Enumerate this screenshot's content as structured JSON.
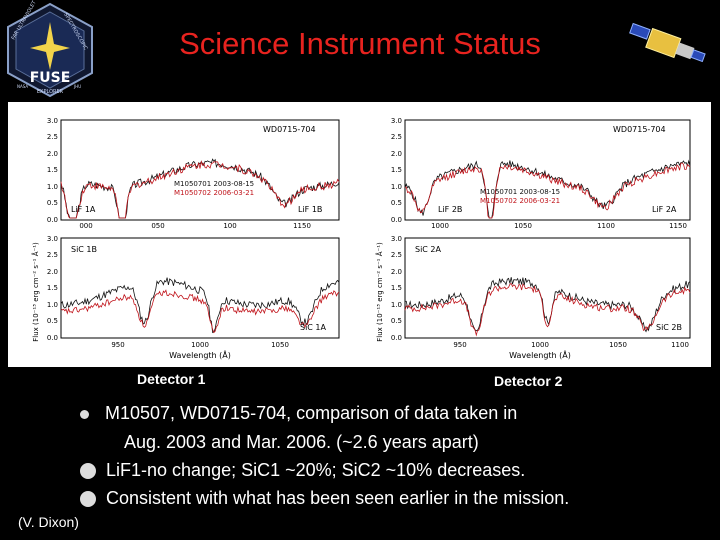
{
  "slide": {
    "title": "Science Instrument Status",
    "credit": "(V. Dixon)"
  },
  "logo": {
    "name": "FUSE",
    "ring_left": "FAR ULTRAVIOLET",
    "ring_right": "SPECTROSCOPIC",
    "bottom": "EXPLORER",
    "left_small": "NASA",
    "right_small": "JHU"
  },
  "detectors": [
    {
      "label": "Detector 1",
      "top_panel": {
        "target": "WD0715-704",
        "legend": [
          "M1050701 2003-08-15",
          "M1050702 2006-03-21"
        ],
        "left_tag": "LiF 1A",
        "right_tag": "LiF 1B",
        "xticks": [
          "000",
          "050",
          "100",
          "1150"
        ],
        "yticks": [
          "3.0",
          "2.5",
          "2.0",
          "1.5",
          "1.0",
          "0.5",
          "0.0"
        ]
      },
      "bottom_panel": {
        "left_tag": "SiC 1B",
        "right_tag": "SiC 1A",
        "xticks": [
          "950",
          "1000",
          "1050"
        ],
        "yticks": [
          "3.0",
          "2.5",
          "2.0",
          "1.5",
          "1.0",
          "0.5",
          "0.0"
        ],
        "xlabel": "Wavelength (Å)"
      },
      "ylabel": "Flux (10⁻¹³ erg cm⁻² s⁻¹ Å⁻¹)"
    },
    {
      "label": "Detector 2",
      "top_panel": {
        "target": "WD0715-704",
        "legend": [
          "M1050701 2003-08-15",
          "M1050702 2006-03-21"
        ],
        "left_tag": "LiF 2B",
        "right_tag": "LiF 2A",
        "xticks": [
          "1000",
          "1050",
          "1100",
          "1150"
        ],
        "yticks": [
          "3.0",
          "2.5",
          "2.0",
          "1.5",
          "1.0",
          "0.5",
          "0.0"
        ]
      },
      "bottom_panel": {
        "left_tag": "SiC 2A",
        "right_tag": "SiC 2B",
        "xticks": [
          "950",
          "1000",
          "1050",
          "1100"
        ],
        "yticks": [
          "3.0",
          "2.5",
          "2.0",
          "1.5",
          "1.0",
          "0.5",
          "0.0"
        ],
        "xlabel": "Wavelength (Å)"
      },
      "ylabel": "Flux (10⁻¹³ erg cm⁻² s⁻¹ Å⁻¹)"
    }
  ],
  "bullets": [
    {
      "line1": "M10507, WD0715-704, comparison of data taken in",
      "line2": "Aug. 2003 and Mar. 2006.  (~2.6 years apart)"
    },
    {
      "line1": "LiF1-no change; SiC1 ~20%; SiC2 ~10% decreases."
    },
    {
      "line1": "Consistent with what has been seen earlier in the mission."
    }
  ],
  "colors": {
    "title": "#e8231f",
    "series_2003": "#111111",
    "series_2006": "#c0141b"
  }
}
